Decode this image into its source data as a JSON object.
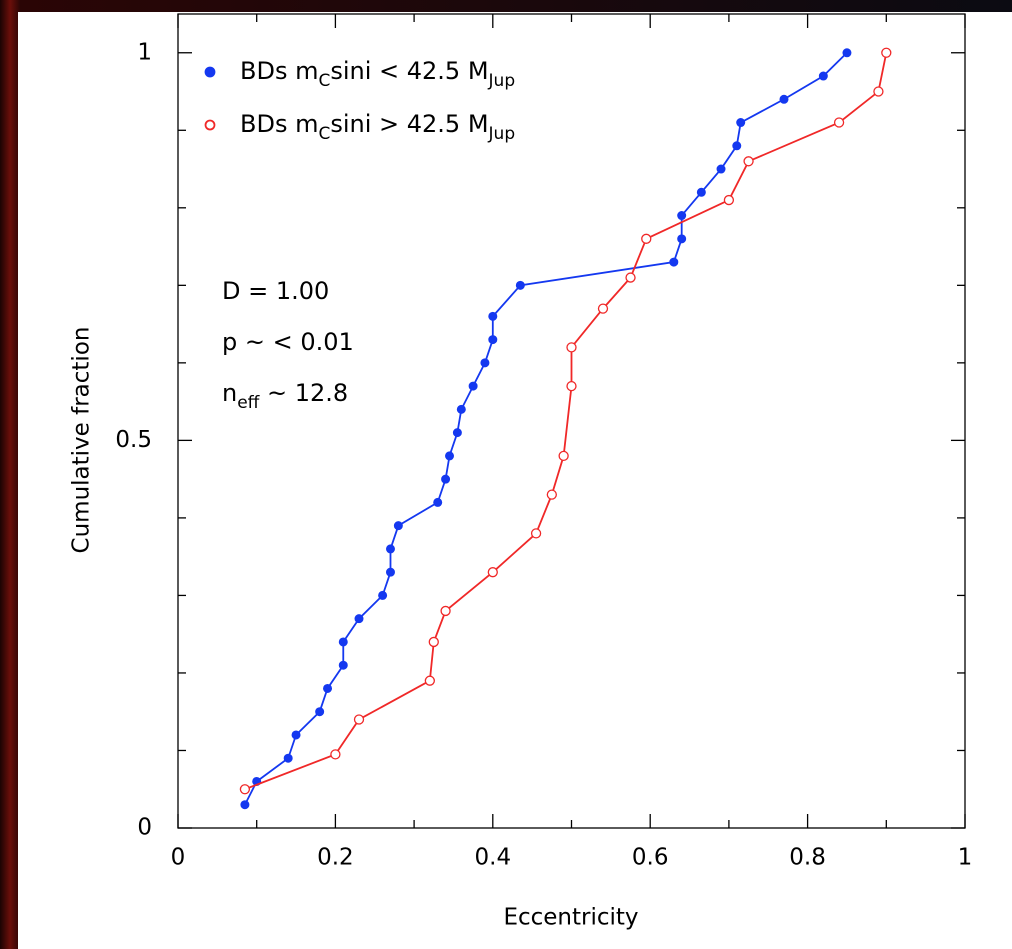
{
  "chart_data": {
    "type": "line",
    "x_label": "Eccentricity",
    "y_label": "Cumulative fraction",
    "xlim": [
      0,
      1
    ],
    "ylim": [
      0,
      1.05
    ],
    "xticks": [
      0,
      0.2,
      0.4,
      0.6,
      0.8,
      1
    ],
    "yticks": [
      0,
      0.5,
      1
    ],
    "xminorticks": [
      0.1,
      0.3,
      0.5,
      0.7,
      0.9
    ],
    "yminorticks": [
      0.1,
      0.2,
      0.3,
      0.4,
      0.6,
      0.7,
      0.8,
      0.9
    ],
    "series": [
      {
        "name": [
          "BDs m",
          "C",
          "sini < 42.5 M",
          "Jup"
        ],
        "color": "#1438f0",
        "marker": "filled",
        "x": [
          0.085,
          0.1,
          0.14,
          0.15,
          0.18,
          0.19,
          0.21,
          0.21,
          0.23,
          0.26,
          0.27,
          0.27,
          0.28,
          0.33,
          0.34,
          0.345,
          0.355,
          0.36,
          0.375,
          0.39,
          0.4,
          0.4,
          0.435,
          0.63,
          0.64,
          0.64,
          0.665,
          0.69,
          0.71,
          0.715,
          0.77,
          0.82,
          0.85
        ],
        "values": [
          0.03,
          0.06,
          0.09,
          0.12,
          0.15,
          0.18,
          0.21,
          0.24,
          0.27,
          0.3,
          0.33,
          0.36,
          0.39,
          0.42,
          0.45,
          0.48,
          0.51,
          0.54,
          0.57,
          0.6,
          0.63,
          0.66,
          0.7,
          0.73,
          0.76,
          0.79,
          0.82,
          0.85,
          0.88,
          0.91,
          0.94,
          0.97,
          1.0
        ]
      },
      {
        "name": [
          "BDs m",
          "C",
          "sini > 42.5 M",
          "Jup"
        ],
        "color": "#f02828",
        "marker": "open",
        "x": [
          0.085,
          0.2,
          0.23,
          0.32,
          0.325,
          0.34,
          0.4,
          0.455,
          0.475,
          0.49,
          0.5,
          0.5,
          0.54,
          0.575,
          0.595,
          0.7,
          0.725,
          0.84,
          0.89,
          0.9
        ],
        "values": [
          0.05,
          0.095,
          0.14,
          0.19,
          0.24,
          0.28,
          0.33,
          0.38,
          0.43,
          0.48,
          0.57,
          0.62,
          0.67,
          0.71,
          0.76,
          0.81,
          0.86,
          0.91,
          0.95,
          1.0
        ]
      }
    ],
    "annotations": [
      [
        "D = 1.00"
      ],
      [
        "p ~ < 0.01"
      ],
      [
        "n",
        "eff",
        " ~ 12.8"
      ]
    ]
  }
}
